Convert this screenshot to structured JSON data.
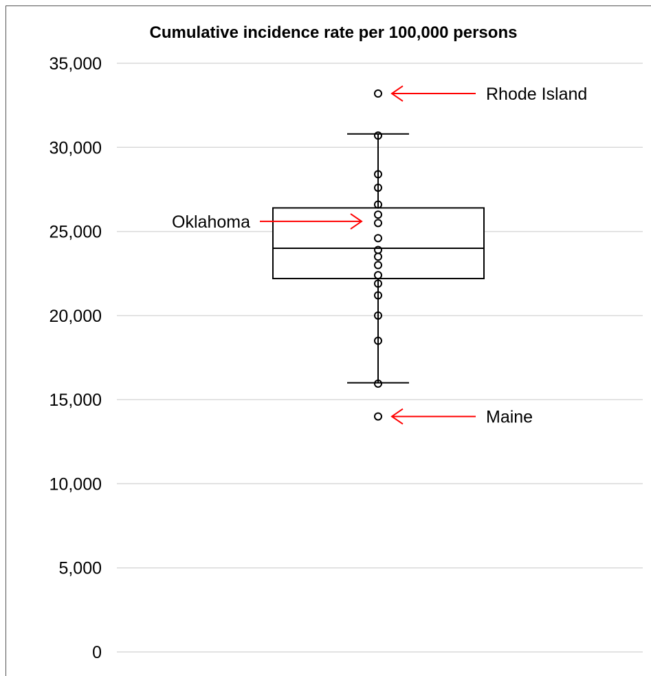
{
  "chart_data": {
    "type": "box",
    "title": "Cumulative incidence rate per 100,000 persons",
    "xlabel": "",
    "ylabel": "",
    "ylim": [
      0,
      35000
    ],
    "yticks": [
      0,
      5000,
      10000,
      15000,
      20000,
      25000,
      30000,
      35000
    ],
    "ytick_labels": [
      "0",
      "5,000",
      "10,000",
      "15,000",
      "20,000",
      "25,000",
      "30,000",
      "35,000"
    ],
    "grid": true,
    "box": {
      "whisker_low": 16000,
      "q1": 22200,
      "median": 24000,
      "q3": 26400,
      "whisker_high": 30800
    },
    "points": [
      33200,
      30700,
      28400,
      27600,
      26600,
      26000,
      25500,
      24600,
      23900,
      23500,
      23000,
      22400,
      21900,
      21200,
      20000,
      18500,
      15950,
      14000
    ],
    "annotations": [
      {
        "label": "Rhode Island",
        "value": 33200,
        "side": "right"
      },
      {
        "label": "Oklahoma",
        "value": 25600,
        "side": "left"
      },
      {
        "label": "Maine",
        "value": 14000,
        "side": "right"
      }
    ],
    "colors": {
      "arrow": "#ff0000",
      "box": "#000000",
      "grid": "#d9d9d9"
    }
  }
}
